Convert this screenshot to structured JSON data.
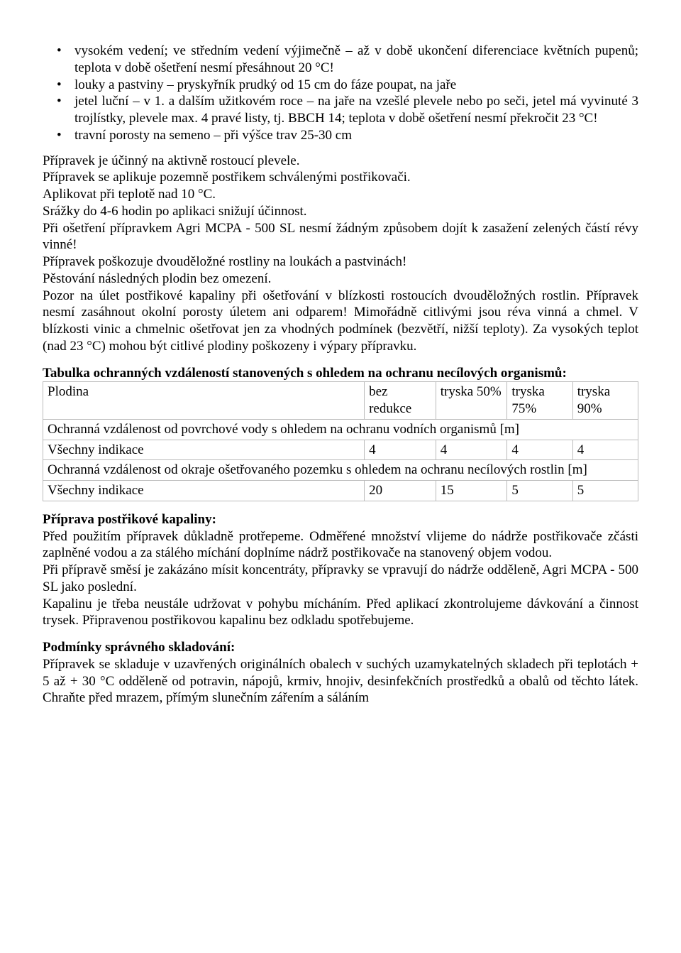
{
  "bullets": [
    "vysokém vedení; ve středním vedení výjimečně – až v době ukončení diferenciace květních pupenů; teplota v době ošetření nesmí přesáhnout 20 °C!",
    "louky a pastviny – pryskyřník prudký od 15 cm do fáze poupat, na jaře",
    "jetel luční – v 1. a dalším užitkovém roce – na jaře na vzešlé plevele nebo po seči, jetel má vyvinuté 3 trojlístky, plevele max. 4 pravé listy, tj. BBCH 14; teplota v době ošetření nesmí překročit 23 °C!",
    "travní porosty na semeno – při výšce trav 25-30 cm"
  ],
  "para1": [
    "Přípravek je účinný na aktivně rostoucí plevele.",
    "Přípravek se aplikuje pozemně postřikem schválenými postřikovači.",
    "Aplikovat při teplotě nad 10 °C.",
    "Srážky do 4-6 hodin po aplikaci snižují účinnost.",
    "Při ošetření přípravkem Agri MCPA - 500 SL nesmí žádným způsobem dojít k zasažení zelených částí révy vinné!",
    "Přípravek poškozuje dvouděložné rostliny na loukách a pastvinách!",
    "Pěstování následných plodin bez omezení.",
    "Pozor na úlet postřikové kapaliny při ošetřování v blízkosti rostoucích dvouděložných rostlin. Přípravek nesmí zasáhnout okolní porosty úletem ani odparem! Mimořádně citlivými jsou réva vinná a chmel. V blízkosti vinic a chmelnic ošetřovat jen za vhodných podmínek (bezvětří, nižší teploty). Za vysokých teplot (nad 23 °C) mohou být citlivé plodiny poškozeny i výpary přípravku."
  ],
  "table": {
    "heading": "Tabulka ochranných vzdáleností stanovených s ohledem na ochranu necílových organismů:",
    "head_row": [
      "Plodina",
      "bez redukce",
      "tryska 50%",
      "tryska 75%",
      "tryska 90%"
    ],
    "span1": "Ochranná vzdálenost od povrchové vody s ohledem na ochranu vodních organismů [m]",
    "row1": [
      "Všechny indikace",
      "4",
      "4",
      "4",
      "4"
    ],
    "span2": "Ochranná vzdálenost od okraje ošetřovaného pozemku s ohledem na ochranu necílových rostlin [m]",
    "row2": [
      "Všechny indikace",
      "20",
      "15",
      "5",
      "5"
    ],
    "col_widths": [
      "54%",
      "12%",
      "12%",
      "11%",
      "11%"
    ]
  },
  "sec2_title": "Příprava postřikové kapaliny:",
  "sec2_body": [
    "Před použitím přípravek důkladně protřepeme. Odměřené množství vlijeme do nádrže postřikovače zčásti zaplněné vodou a za stálého míchání doplníme nádrž postřikovače na stanovený objem vodou.",
    "Při přípravě směsí je zakázáno mísit koncentráty, přípravky se vpravují do nádrže odděleně, Agri MCPA - 500 SL jako poslední.",
    "Kapalinu je třeba neustále udržovat v pohybu mícháním. Před aplikací zkontrolujeme dávkování a činnost trysek. Připravenou postřikovou kapalinu bez odkladu spotřebujeme."
  ],
  "sec3_title": "Podmínky správného skladování:",
  "sec3_body": "Přípravek se skladuje v uzavřených originálních obalech v suchých uzamykatelných skladech při teplotách + 5 až + 30 °C odděleně od potravin, nápojů, krmiv, hnojiv, desinfekčních prostředků a obalů od těchto látek. Chraňte před mrazem, přímým slunečním zářením a sáláním"
}
